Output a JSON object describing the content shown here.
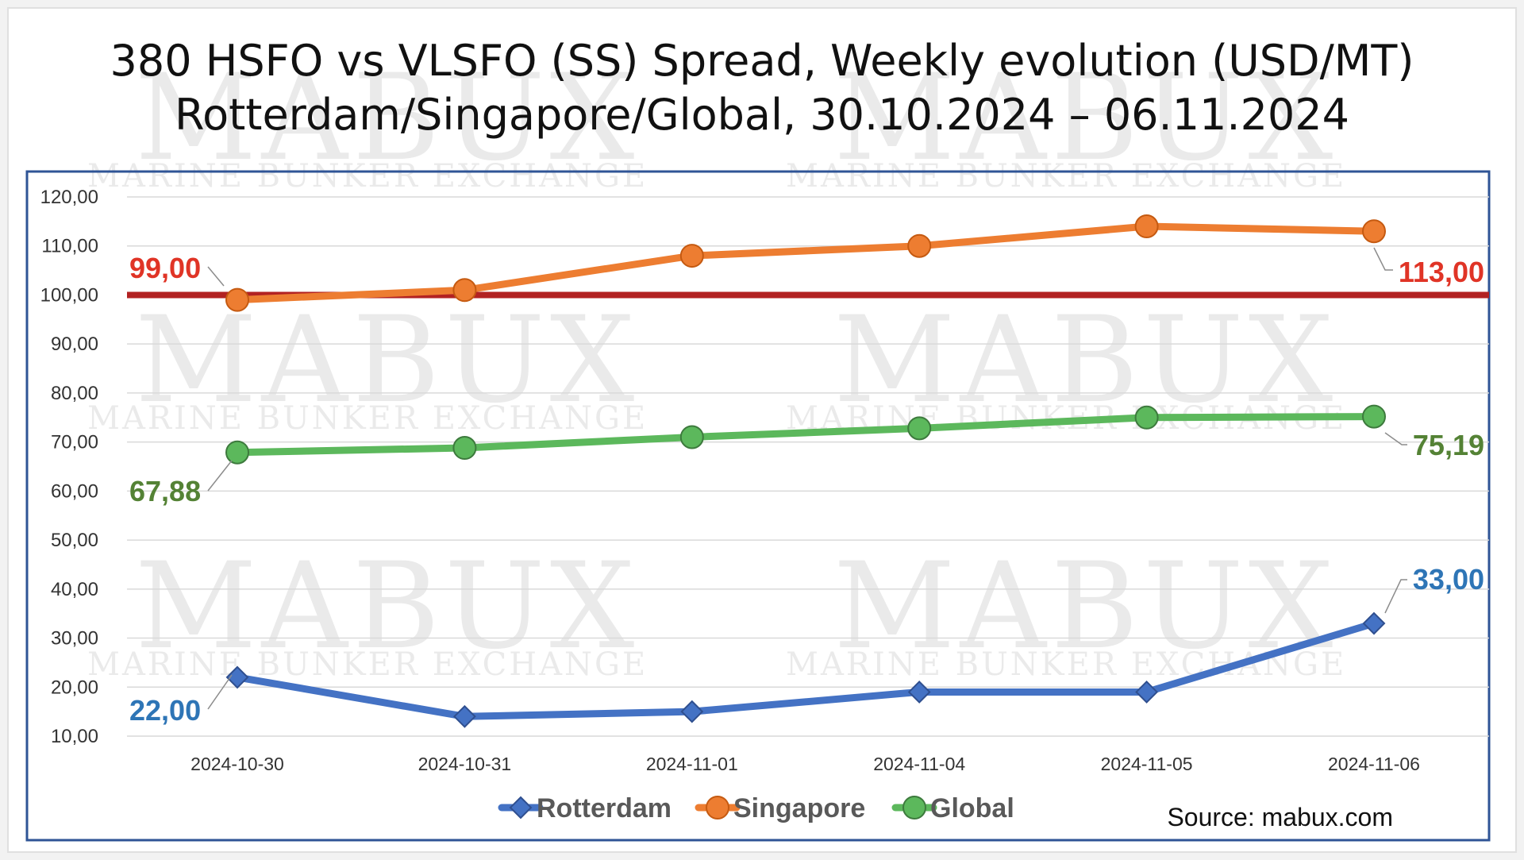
{
  "title": {
    "line1": "380 HSFO vs VLSFO (SS) Spread, Weekly evolution (USD/MT)",
    "line2": "Rotterdam/Singapore/Global, 30.10.2024 – 06.11.2024"
  },
  "watermark": {
    "brand": "MABUX",
    "tagline": "MARINE BUNKER EXCHANGE"
  },
  "source": "Source: mabux.com",
  "chart_data": {
    "type": "line",
    "title": "380 HSFO vs VLSFO (SS) Spread, Weekly evolution (USD/MT) Rotterdam/Singapore/Global, 30.10.2024 – 06.11.2024",
    "categories": [
      "2024-10-30",
      "2024-10-31",
      "2024-11-01",
      "2024-11-04",
      "2024-11-05",
      "2024-11-06"
    ],
    "yticks": [
      "10,00",
      "20,00",
      "30,00",
      "40,00",
      "50,00",
      "60,00",
      "70,00",
      "80,00",
      "90,00",
      "100,00",
      "110,00",
      "120,00"
    ],
    "ylim": [
      10,
      120
    ],
    "grid": true,
    "legend_position": "bottom",
    "reference_line": {
      "value": 100,
      "color": "#b22222"
    },
    "series": [
      {
        "name": "Rotterdam",
        "color": "#4472c4",
        "marker": "diamond",
        "values": [
          22,
          14,
          15,
          19,
          19,
          33
        ],
        "first_label": "22,00",
        "last_label": "33,00",
        "label_color": "#2e75b6"
      },
      {
        "name": "Singapore",
        "color": "#ed7d31",
        "marker": "circle",
        "values": [
          99,
          101,
          108,
          110,
          114,
          113
        ],
        "first_label": "99,00",
        "last_label": "113,00",
        "label_color": "#e03426"
      },
      {
        "name": "Global",
        "color": "#5cb85c",
        "marker": "circle",
        "values": [
          67.88,
          68.8,
          71,
          72.8,
          75,
          75.19
        ],
        "first_label": "67,88",
        "last_label": "75,19",
        "label_color": "#548235"
      }
    ]
  }
}
